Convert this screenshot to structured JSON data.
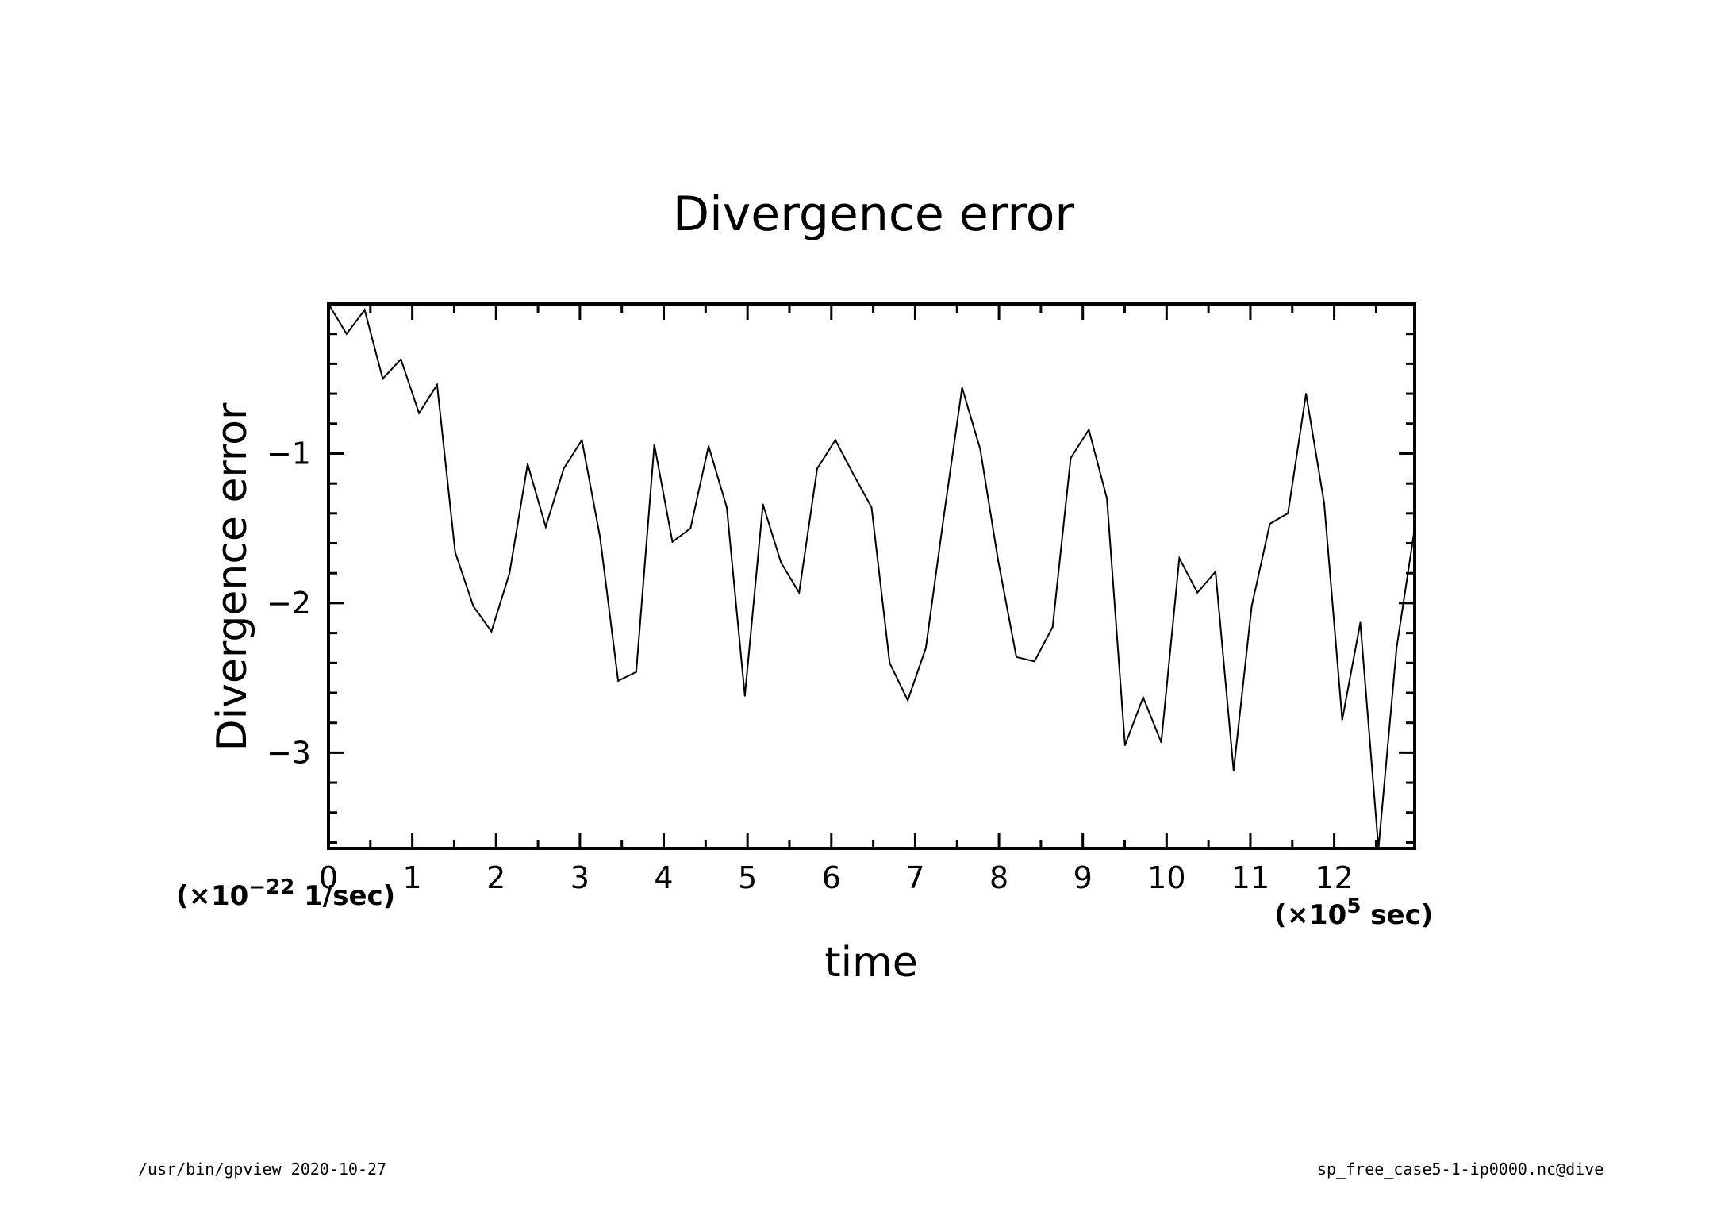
{
  "chart_data": {
    "type": "line",
    "title": "Divergence error",
    "xlabel": "time",
    "ylabel": "Divergence error",
    "x_unit_prefix": "(×10",
    "x_unit_exp": "5",
    "x_unit_suffix": " sec)",
    "y_unit_prefix": "(×10",
    "y_unit_exp": "−22",
    "y_unit_suffix": " 1/sec)",
    "xlim": [
      0,
      12.96
    ],
    "ylim": [
      -3.64,
      0
    ],
    "xticks": [
      0,
      1,
      2,
      3,
      4,
      5,
      6,
      7,
      8,
      9,
      10,
      11,
      12
    ],
    "xtick_labels": [
      "0",
      "1",
      "2",
      "3",
      "4",
      "5",
      "6",
      "7",
      "8",
      "9",
      "10",
      "11",
      "12"
    ],
    "yticks": [
      -1,
      -2,
      -3
    ],
    "ytick_labels": [
      "−1",
      "−2",
      "−3"
    ],
    "grid": false,
    "line_color": "#000000",
    "x": [
      0,
      0.216,
      0.432,
      0.648,
      0.864,
      1.08,
      1.296,
      1.512,
      1.728,
      1.944,
      2.16,
      2.376,
      2.592,
      2.808,
      3.024,
      3.24,
      3.456,
      3.672,
      3.888,
      4.104,
      4.32,
      4.536,
      4.752,
      4.968,
      5.184,
      5.4,
      5.616,
      5.832,
      6.048,
      6.264,
      6.48,
      6.696,
      6.912,
      7.128,
      7.344,
      7.56,
      7.776,
      7.992,
      8.208,
      8.424,
      8.64,
      8.856,
      9.072,
      9.288,
      9.504,
      9.72,
      9.936,
      10.152,
      10.368,
      10.584,
      10.8,
      11.016,
      11.232,
      11.448,
      11.664,
      11.88,
      12.096,
      12.312,
      12.528,
      12.744,
      12.96
    ],
    "values": [
      0.0,
      -0.2,
      -0.04,
      -0.5,
      -0.37,
      -0.73,
      -0.54,
      -1.66,
      -2.02,
      -2.19,
      -1.8,
      -1.07,
      -1.49,
      -1.1,
      -0.91,
      -1.56,
      -2.52,
      -2.46,
      -0.94,
      -1.59,
      -1.5,
      -0.95,
      -1.36,
      -2.62,
      -1.34,
      -1.73,
      -1.93,
      -1.1,
      -0.91,
      -1.14,
      -1.36,
      -2.4,
      -2.65,
      -2.3,
      -1.41,
      -0.56,
      -0.97,
      -1.72,
      -2.36,
      -2.39,
      -2.16,
      -1.03,
      -0.84,
      -1.3,
      -2.95,
      -2.63,
      -2.93,
      -1.7,
      -1.93,
      -1.79,
      -3.12,
      -2.02,
      -1.47,
      -1.4,
      -0.6,
      -1.33,
      -2.78,
      -2.13,
      -3.64,
      -2.3,
      -1.5
    ]
  },
  "footer": {
    "left": "/usr/bin/gpview  2020-10-27",
    "right": "sp_free_case5-1-ip0000.nc@dive"
  }
}
